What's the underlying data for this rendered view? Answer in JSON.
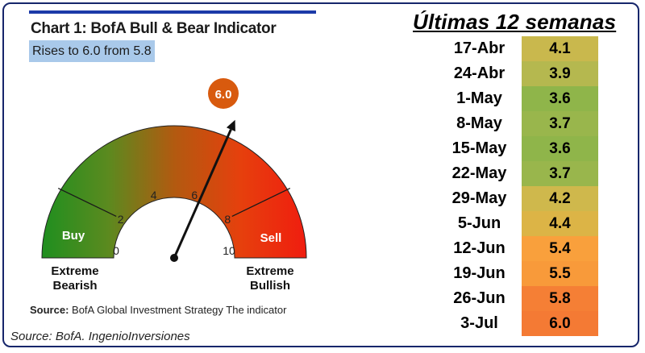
{
  "chart_data": [
    {
      "type": "gauge",
      "title": "Chart 1: BofA Bull & Bear Indicator",
      "subtitle": "Rises to 6.0 from 5.8",
      "value": 6.0,
      "value_label": "6.0",
      "range": [
        0,
        10
      ],
      "ticks": [
        "0",
        "2",
        "4",
        "6",
        "8",
        "10"
      ],
      "zones": [
        {
          "label": "Buy",
          "from": 0,
          "to": 2
        },
        {
          "label": "Sell",
          "from": 8,
          "to": 10
        }
      ],
      "left_caption": [
        "Extreme",
        "Bearish"
      ],
      "right_caption": [
        "Extreme",
        "Bullish"
      ],
      "source_label": "Source:",
      "source_text": "BofA Global Investment Strategy The indicator"
    },
    {
      "type": "table",
      "title": "Últimas 12 semanas",
      "rows": [
        {
          "week": "17-Abr",
          "value": "4.1",
          "color": "#c9b84d"
        },
        {
          "week": "24-Abr",
          "value": "3.9",
          "color": "#b5b84f"
        },
        {
          "week": "1-May",
          "value": "3.6",
          "color": "#8fb54a"
        },
        {
          "week": "8-May",
          "value": "3.7",
          "color": "#99b64c"
        },
        {
          "week": "15-May",
          "value": "3.6",
          "color": "#8fb54a"
        },
        {
          "week": "22-May",
          "value": "3.7",
          "color": "#99b64c"
        },
        {
          "week": "29-May",
          "value": "4.2",
          "color": "#cfb84c"
        },
        {
          "week": "5-Jun",
          "value": "4.4",
          "color": "#dcb446"
        },
        {
          "week": "12-Jun",
          "value": "5.4",
          "color": "#f9a03c"
        },
        {
          "week": "19-Jun",
          "value": "5.5",
          "color": "#f89a3a"
        },
        {
          "week": "26-Jun",
          "value": "5.8",
          "color": "#f57f35"
        },
        {
          "week": "3-Jul",
          "value": "6.0",
          "color": "#f47a34"
        }
      ]
    }
  ],
  "footer": "Source: BofA. IngenioInversiones"
}
